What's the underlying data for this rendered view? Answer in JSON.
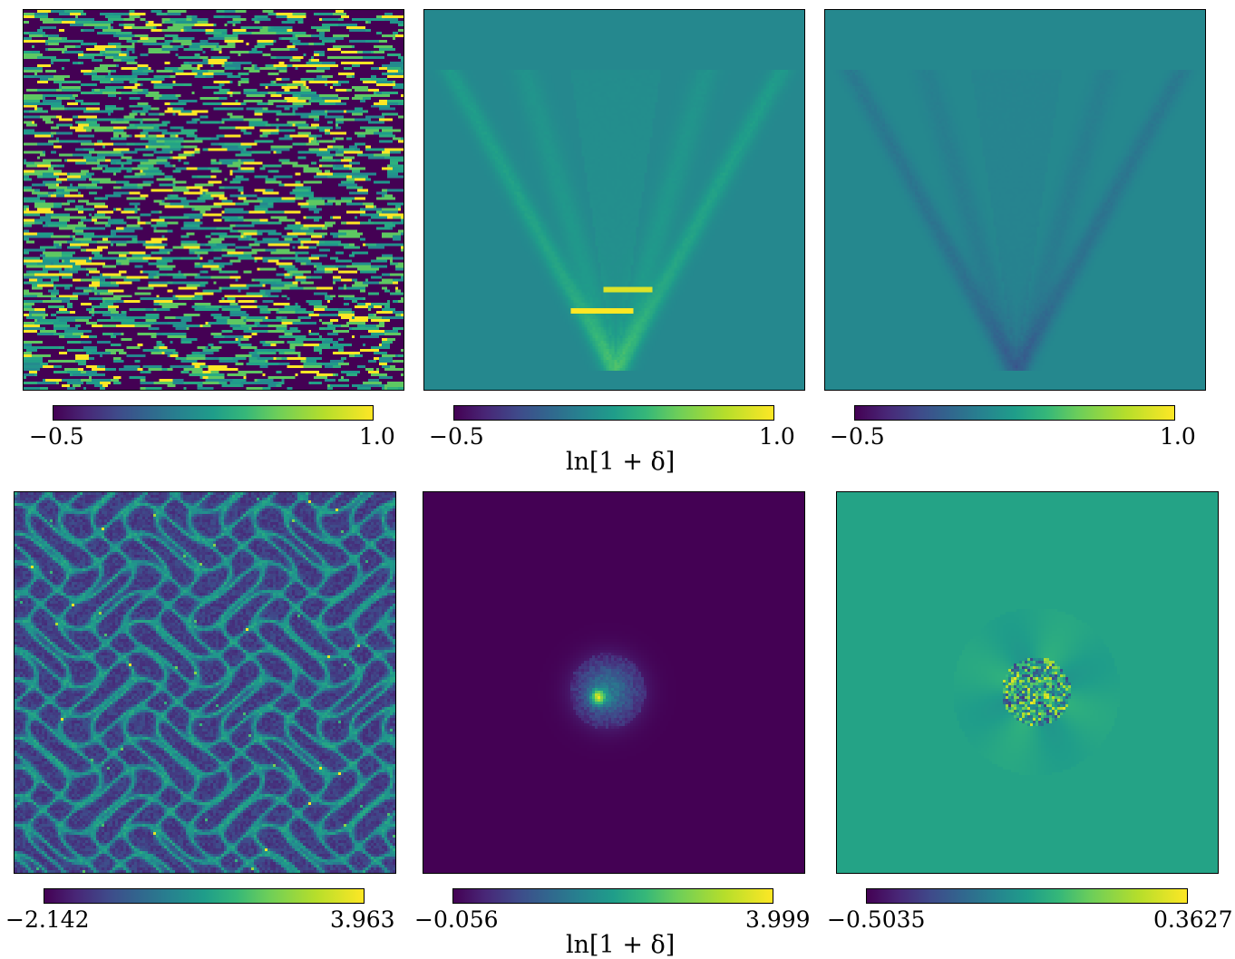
{
  "colormap": "viridis",
  "colormap_stops": [
    "#440154",
    "#482777",
    "#3f4a8a",
    "#31678e",
    "#26838f",
    "#1f9d8a",
    "#35b779",
    "#6cce5a",
    "#b6de2b",
    "#fde725"
  ],
  "chart_data": [
    {
      "type": "heatmap",
      "row": "top",
      "col": "left",
      "colorbar": {
        "min": "−0.5",
        "max": "1.0",
        "vmin": -0.5,
        "vmax": 1.0
      },
      "colorbar_label": "",
      "pattern": "noise-streaks"
    },
    {
      "type": "heatmap",
      "row": "top",
      "col": "center",
      "colorbar": {
        "min": "−0.5",
        "max": "1.0",
        "vmin": -0.5,
        "vmax": 1.0
      },
      "colorbar_label": "ln[1 + δ]",
      "pattern": "cone-bright",
      "background_value": 0.2
    },
    {
      "type": "heatmap",
      "row": "top",
      "col": "right",
      "colorbar": {
        "min": "−0.5",
        "max": "1.0",
        "vmin": -0.5,
        "vmax": 1.0
      },
      "colorbar_label": "",
      "pattern": "cone-dark",
      "background_value": 0.2
    },
    {
      "type": "heatmap",
      "row": "bottom",
      "col": "left",
      "colorbar": {
        "min": "−2.142",
        "max": "3.963",
        "vmin": -2.142,
        "vmax": 3.963
      },
      "colorbar_label": "",
      "pattern": "cosmic-web"
    },
    {
      "type": "heatmap",
      "row": "bottom",
      "col": "center",
      "colorbar": {
        "min": "−0.056",
        "max": "3.999",
        "vmin": -0.056,
        "vmax": 3.999
      },
      "colorbar_label": "ln[1 + δ]",
      "pattern": "central-blob",
      "background_value": -0.056
    },
    {
      "type": "heatmap",
      "row": "bottom",
      "col": "right",
      "colorbar": {
        "min": "−0.5035",
        "max": "0.3627",
        "vmin": -0.5035,
        "vmax": 0.3627
      },
      "colorbar_label": "",
      "pattern": "central-residual",
      "background_value": 0.0
    }
  ]
}
